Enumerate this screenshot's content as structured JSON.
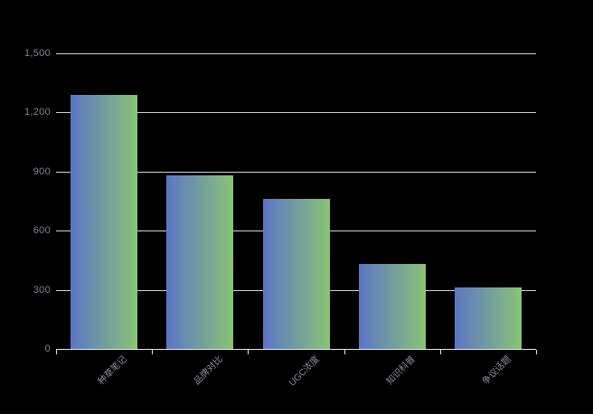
{
  "chart_data": {
    "type": "bar",
    "title": "",
    "categories": [
      "种草笔记",
      "品牌对比",
      "UGC浓度",
      "知识科普",
      "争议话题"
    ],
    "values": [
      1290,
      880,
      760,
      430,
      310
    ],
    "xlabel": "",
    "ylabel": "",
    "ylim": [
      0,
      1500
    ],
    "yticks": [
      0,
      300,
      600,
      900,
      1200,
      1500
    ],
    "ytick_labels": [
      "0",
      "300",
      "600",
      "900",
      "1,200",
      "1,500"
    ],
    "grid": true,
    "legend_position": "none",
    "colors": {
      "background": "#000000",
      "bar_gradient_left": "#5b76c6",
      "bar_gradient_right": "#8bc376",
      "gridline": "#ced3db",
      "axis_line": "#e8eaf0",
      "y_label_text": "#80848f",
      "x_label_text": "#8b8f9a"
    }
  }
}
